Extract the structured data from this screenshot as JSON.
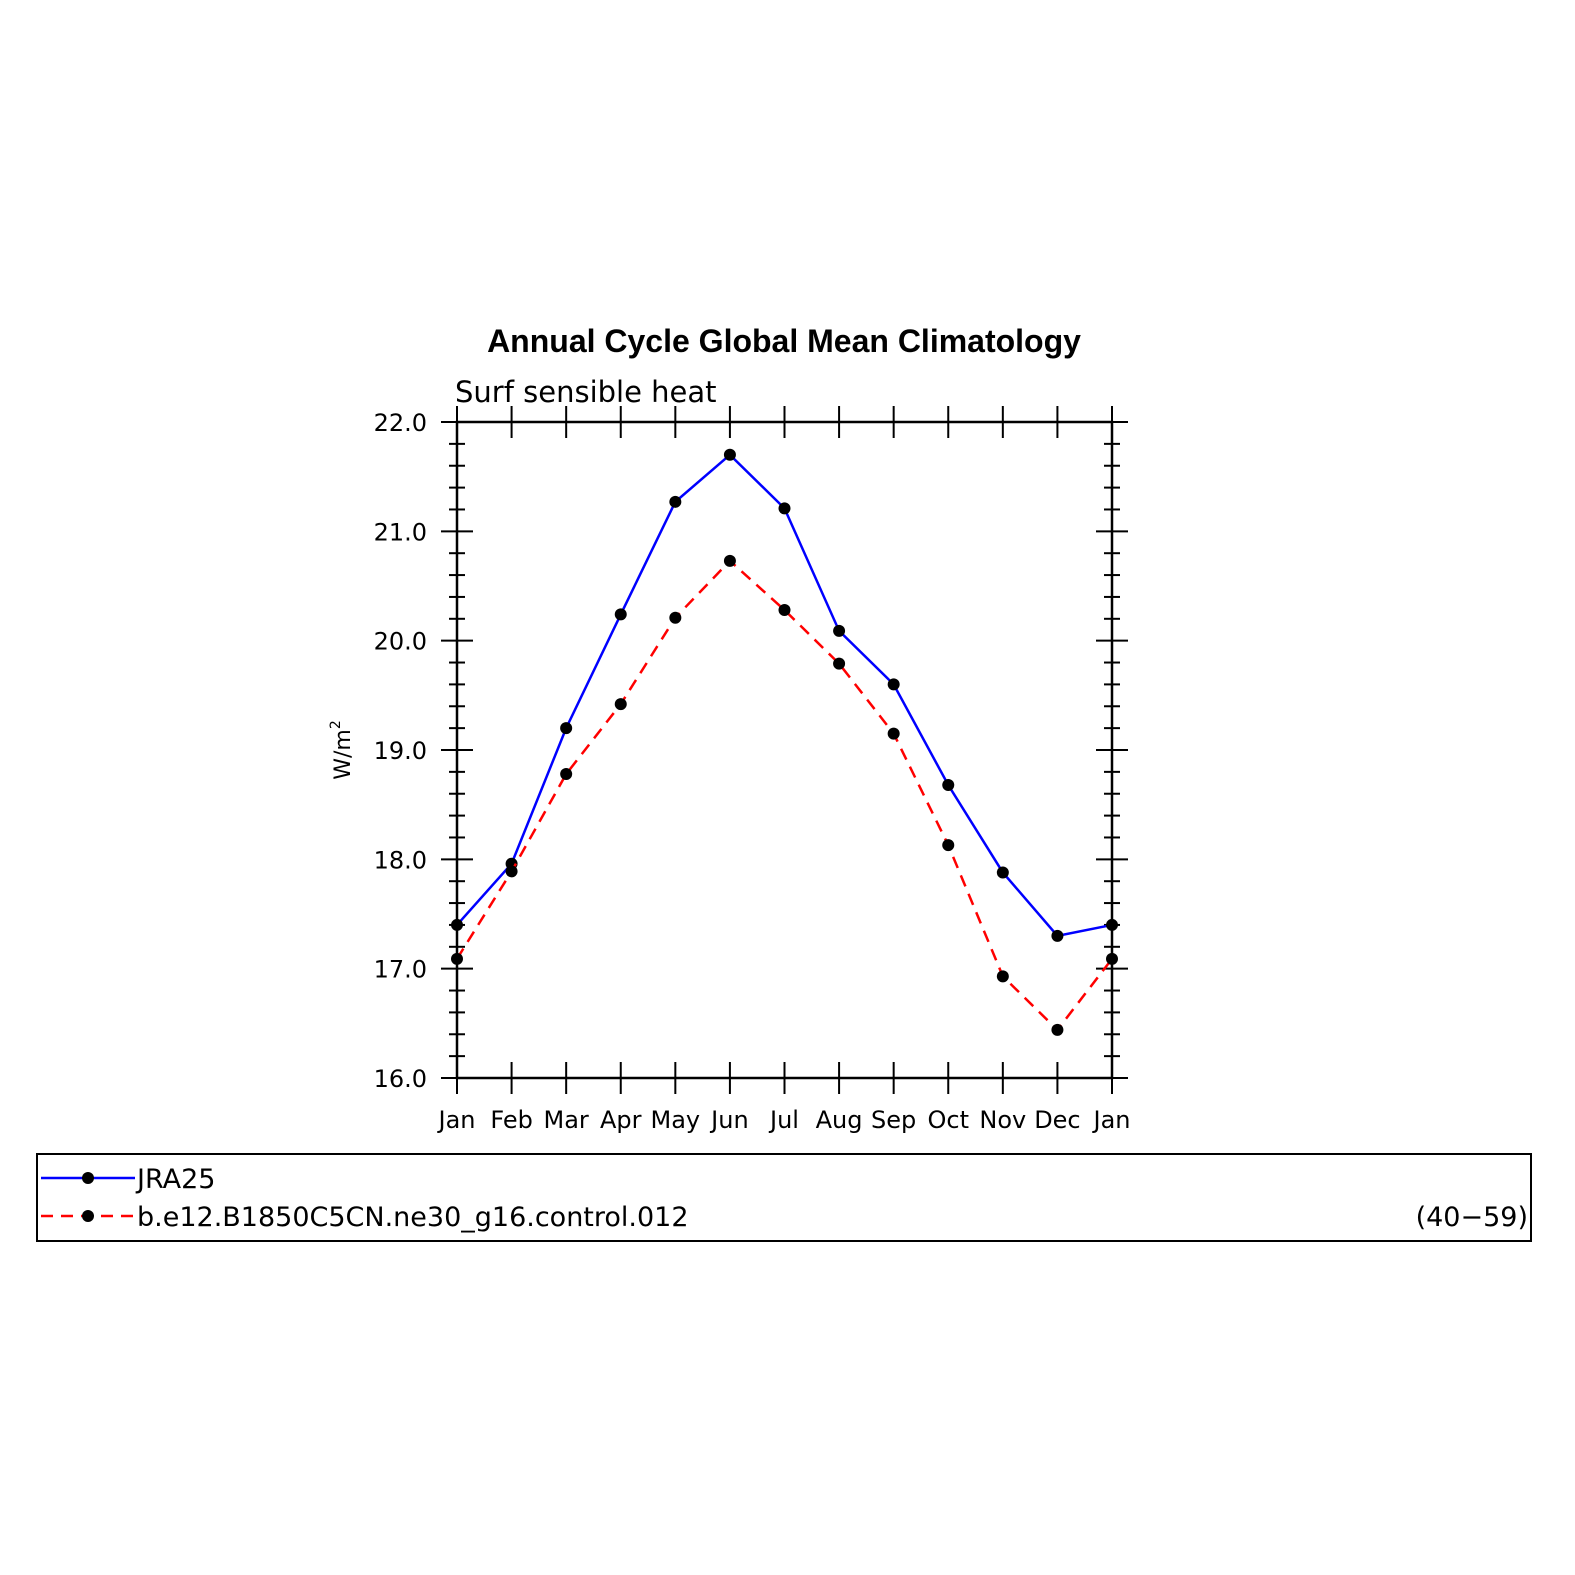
{
  "chart_data": {
    "type": "line",
    "title": "Annual Cycle Global Mean Climatology",
    "subtitle": "Surf sensible heat",
    "ylabel": "W/m",
    "ylabel_superscript": "2",
    "xlabel": "",
    "categories": [
      "Jan",
      "Feb",
      "Mar",
      "Apr",
      "May",
      "Jun",
      "Jul",
      "Aug",
      "Sep",
      "Oct",
      "Nov",
      "Dec",
      "Jan"
    ],
    "ylim": [
      16.0,
      22.0
    ],
    "yticks": [
      "16.0",
      "17.0",
      "18.0",
      "19.0",
      "20.0",
      "21.0",
      "22.0"
    ],
    "grid": false,
    "legend_placement": "bottom",
    "series": [
      {
        "name": "JRA25",
        "color": "#0000ff",
        "dash": "solid",
        "marker": "filled-circle",
        "values": [
          17.4,
          17.96,
          19.2,
          20.24,
          21.27,
          21.7,
          21.21,
          20.09,
          19.6,
          18.68,
          17.88,
          17.3,
          17.4
        ]
      },
      {
        "name": "b.e12.B1850C5CN.ne30_g16.control.012",
        "color": "#ff0000",
        "dash": "dashed",
        "marker": "filled-circle",
        "values": [
          17.09,
          17.89,
          18.78,
          19.42,
          20.21,
          20.73,
          20.28,
          19.79,
          19.15,
          18.13,
          16.93,
          16.44,
          17.09
        ]
      }
    ],
    "legend_note": "(40−59)"
  }
}
